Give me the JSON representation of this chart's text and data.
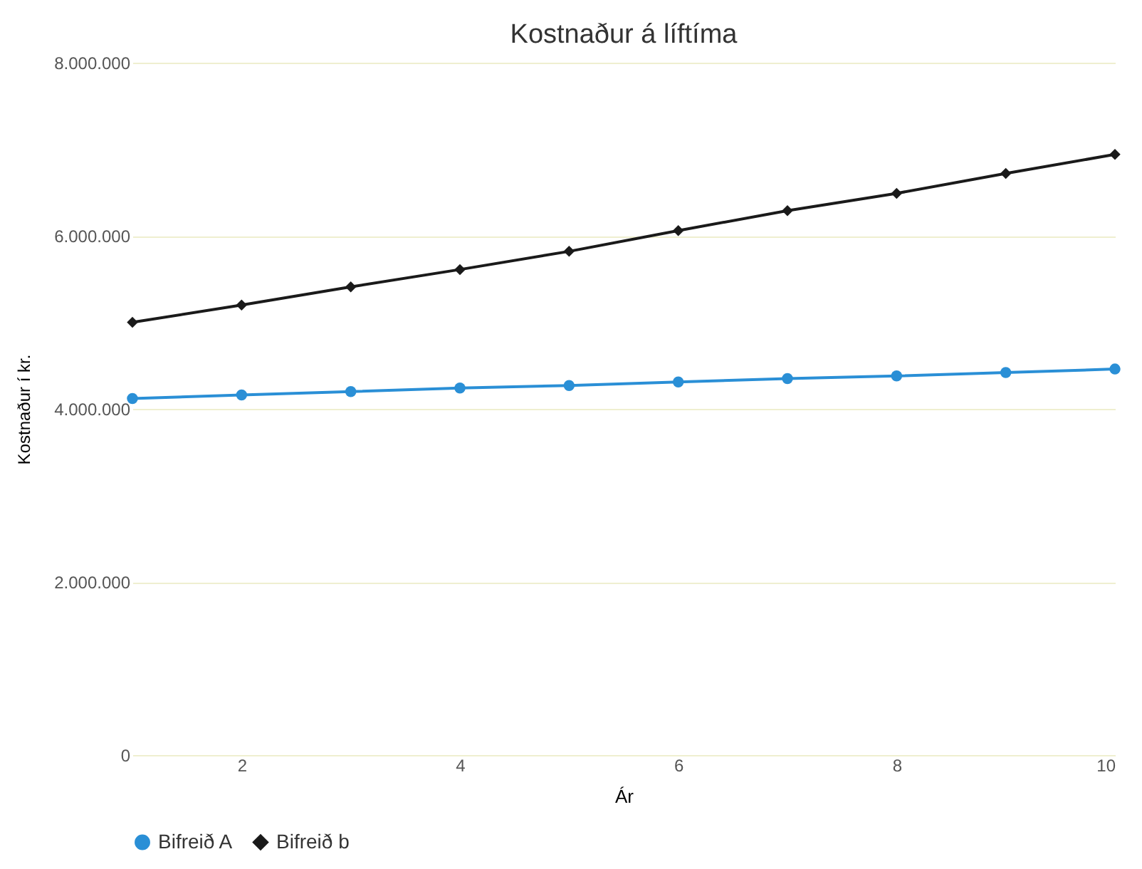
{
  "chart_data": {
    "type": "line",
    "title": "Kostnaður á líftíma",
    "xlabel": "Ár",
    "ylabel": "Kostnaður í kr.",
    "x": [
      1,
      2,
      3,
      4,
      5,
      6,
      7,
      8,
      9,
      10
    ],
    "series": [
      {
        "name": "Bifreið A",
        "color": "#2a8fd6",
        "marker": "circle",
        "values": [
          4120000,
          4160000,
          4200000,
          4240000,
          4270000,
          4310000,
          4350000,
          4380000,
          4420000,
          4460000
        ]
      },
      {
        "name": "Bifreið b",
        "color": "#1a1a1a",
        "marker": "diamond",
        "values": [
          5000000,
          5200000,
          5410000,
          5610000,
          5820000,
          6060000,
          6290000,
          6490000,
          6720000,
          6940000
        ]
      }
    ],
    "xlim": [
      1,
      10
    ],
    "xticks": [
      2,
      4,
      6,
      8,
      10
    ],
    "ylim": [
      0,
      8000000
    ],
    "yticks": [
      {
        "value": 0,
        "label": "0"
      },
      {
        "value": 2000000,
        "label": "2.000.000"
      },
      {
        "value": 4000000,
        "label": "4.000.000"
      },
      {
        "value": 6000000,
        "label": "6.000.000"
      },
      {
        "value": 8000000,
        "label": "8.000.000"
      }
    ],
    "grid": "y",
    "legend": "bottom",
    "line_style": "solid"
  }
}
